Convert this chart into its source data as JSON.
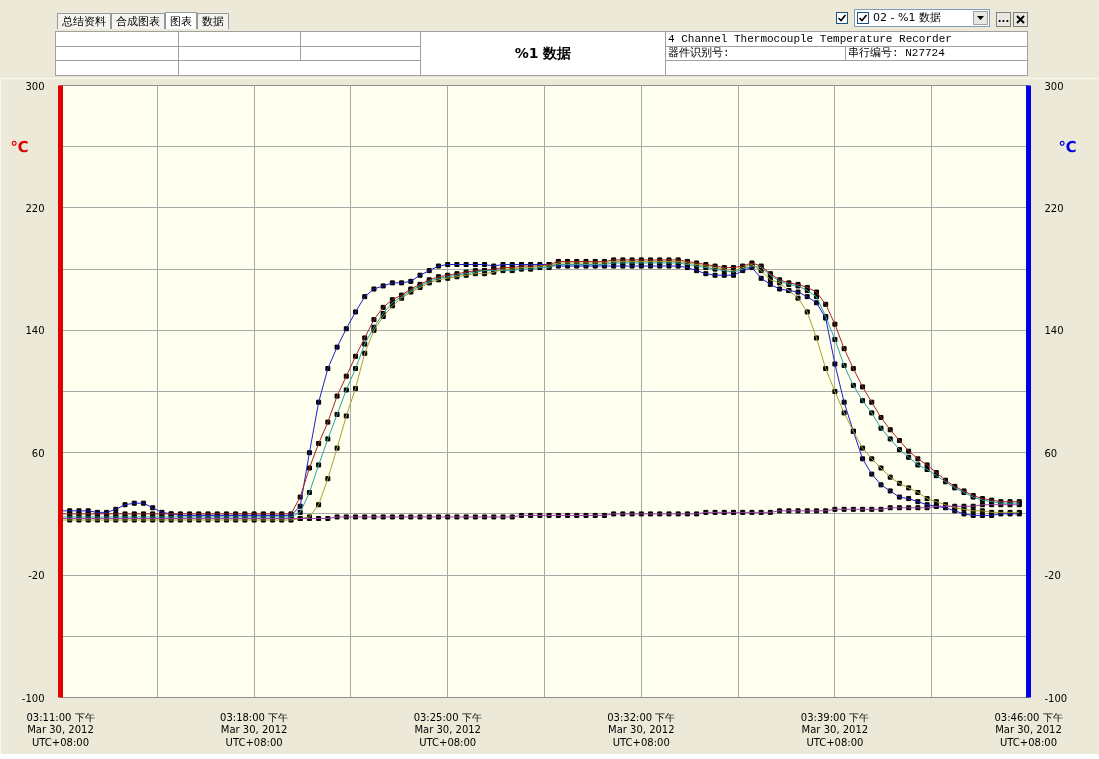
{
  "chart_data": {
    "type": "line",
    "title": "%1 数据",
    "subtitle": "4 Channel Thermocouple Temperature Recorder",
    "ylabel": "℃",
    "y2label": "℃",
    "annotations": [
      "器件识别号:",
      "串行编号: N27724",
      "总结资料",
      "合成图表",
      "图表",
      "数据",
      "02 - %1 数据",
      "..."
    ],
    "x": [
      "2012-03-30T15:11:00",
      "2012-03-30T15:11:20",
      "2012-03-30T15:11:40",
      "2012-03-30T15:12:00",
      "2012-03-30T15:12:20",
      "2012-03-30T15:12:40",
      "2012-03-30T15:13:00",
      "2012-03-30T15:13:20",
      "2012-03-30T15:13:40",
      "2012-03-30T15:14:00",
      "2012-03-30T15:14:20",
      "2012-03-30T15:14:40",
      "2012-03-30T15:15:00",
      "2012-03-30T15:15:20",
      "2012-03-30T15:15:40",
      "2012-03-30T15:16:00",
      "2012-03-30T15:16:20",
      "2012-03-30T15:16:40",
      "2012-03-30T15:17:00",
      "2012-03-30T15:17:20",
      "2012-03-30T15:17:40",
      "2012-03-30T15:18:00",
      "2012-03-30T15:18:20",
      "2012-03-30T15:18:40",
      "2012-03-30T15:19:00",
      "2012-03-30T15:19:20",
      "2012-03-30T15:19:40",
      "2012-03-30T15:20:00",
      "2012-03-30T15:20:20",
      "2012-03-30T15:20:40",
      "2012-03-30T15:21:00",
      "2012-03-30T15:21:20",
      "2012-03-30T15:21:40",
      "2012-03-30T15:22:00",
      "2012-03-30T15:22:20",
      "2012-03-30T15:22:40",
      "2012-03-30T15:23:00",
      "2012-03-30T15:23:20",
      "2012-03-30T15:23:40",
      "2012-03-30T15:24:00",
      "2012-03-30T15:24:20",
      "2012-03-30T15:24:40",
      "2012-03-30T15:25:00",
      "2012-03-30T15:25:20",
      "2012-03-30T15:25:40",
      "2012-03-30T15:26:00",
      "2012-03-30T15:26:20",
      "2012-03-30T15:26:40",
      "2012-03-30T15:27:00",
      "2012-03-30T15:27:20",
      "2012-03-30T15:27:40",
      "2012-03-30T15:28:00",
      "2012-03-30T15:28:20",
      "2012-03-30T15:28:40",
      "2012-03-30T15:29:00",
      "2012-03-30T15:29:20",
      "2012-03-30T15:29:40",
      "2012-03-30T15:30:00",
      "2012-03-30T15:30:20",
      "2012-03-30T15:30:40",
      "2012-03-30T15:31:00",
      "2012-03-30T15:31:20",
      "2012-03-30T15:31:40",
      "2012-03-30T15:32:00",
      "2012-03-30T15:32:20",
      "2012-03-30T15:32:40",
      "2012-03-30T15:33:00",
      "2012-03-30T15:33:20",
      "2012-03-30T15:33:40",
      "2012-03-30T15:34:00",
      "2012-03-30T15:34:20",
      "2012-03-30T15:34:40",
      "2012-03-30T15:35:00",
      "2012-03-30T15:35:20",
      "2012-03-30T15:35:40",
      "2012-03-30T15:36:00",
      "2012-03-30T15:36:20",
      "2012-03-30T15:36:40",
      "2012-03-30T15:37:00",
      "2012-03-30T15:37:20",
      "2012-03-30T15:37:40",
      "2012-03-30T15:38:00",
      "2012-03-30T15:38:20",
      "2012-03-30T15:38:40",
      "2012-03-30T15:39:00",
      "2012-03-30T15:39:20",
      "2012-03-30T15:39:40",
      "2012-03-30T15:40:00",
      "2012-03-30T15:40:20",
      "2012-03-30T15:40:40",
      "2012-03-30T15:41:00",
      "2012-03-30T15:41:20",
      "2012-03-30T15:41:40",
      "2012-03-30T15:42:00",
      "2012-03-30T15:42:20",
      "2012-03-30T15:42:40",
      "2012-03-30T15:43:00",
      "2012-03-30T15:43:20",
      "2012-03-30T15:43:40",
      "2012-03-30T15:44:00",
      "2012-03-30T15:44:20",
      "2012-03-30T15:44:40",
      "2012-03-30T15:45:00",
      "2012-03-30T15:45:20",
      "2012-03-30T15:45:40"
    ],
    "xlim": [
      "2012-03-30T15:11:00",
      "2012-03-30T15:46:00"
    ],
    "xticks": [
      {
        "value": "2012-03-30T15:11:00",
        "label": "03:11:00 下午\nMar 30, 2012\nUTC+08:00"
      },
      {
        "value": "2012-03-30T15:14:30",
        "label": null
      },
      {
        "value": "2012-03-30T15:18:00",
        "label": "03:18:00 下午\nMar 30, 2012\nUTC+08:00"
      },
      {
        "value": "2012-03-30T15:21:30",
        "label": null
      },
      {
        "value": "2012-03-30T15:25:00",
        "label": "03:25:00 下午\nMar 30, 2012\nUTC+08:00"
      },
      {
        "value": "2012-03-30T15:28:30",
        "label": null
      },
      {
        "value": "2012-03-30T15:32:00",
        "label": "03:32:00 下午\nMar 30, 2012\nUTC+08:00"
      },
      {
        "value": "2012-03-30T15:35:30",
        "label": null
      },
      {
        "value": "2012-03-30T15:39:00",
        "label": "03:39:00 下午\nMar 30, 2012\nUTC+08:00"
      },
      {
        "value": "2012-03-30T15:42:30",
        "label": null
      },
      {
        "value": "2012-03-30T15:46:00",
        "label": "03:46:00 下午\nMar 30, 2012\nUTC+08:00"
      }
    ],
    "ylim": [
      -100,
      300
    ],
    "yticks": [
      -100,
      {
        "value": -60,
        "label": null
      },
      -20,
      {
        "value": 20,
        "label": null
      },
      60,
      {
        "value": 100,
        "label": null
      },
      140,
      {
        "value": 180,
        "label": null
      },
      220,
      {
        "value": 260,
        "label": null
      },
      300
    ],
    "y2lim": [
      -100,
      300
    ],
    "y2ticks": [
      -100,
      -20,
      60,
      140,
      220,
      300
    ],
    "grid": true,
    "marker": "square",
    "line_style": "solid",
    "series": [
      {
        "color": "#2020c8",
        "values": [
          22,
          22,
          22,
          22,
          21,
          21,
          23,
          26,
          27,
          27,
          24,
          21,
          20,
          19,
          19,
          19,
          19,
          19,
          19,
          19,
          19,
          19,
          19,
          19,
          19,
          19,
          25,
          60,
          93,
          115,
          129,
          141,
          152,
          162,
          167,
          169,
          171,
          171,
          172,
          176,
          179,
          182,
          183,
          183,
          183,
          183,
          183,
          182,
          183,
          183,
          183,
          183,
          183,
          183,
          182,
          182,
          182,
          182,
          182,
          182,
          182,
          182,
          182,
          182,
          182,
          182,
          182,
          182,
          181,
          179,
          177,
          176,
          176,
          176,
          179,
          181,
          174,
          170,
          167,
          166,
          165,
          162,
          158,
          148,
          118,
          93,
          74,
          56,
          46,
          39,
          35,
          31,
          30,
          28,
          26,
          25,
          24,
          22,
          20,
          19,
          19,
          19,
          20,
          20,
          20
        ]
      },
      {
        "color": "#a02828",
        "values": [
          20,
          20,
          20,
          20,
          20,
          20,
          20,
          20,
          20,
          20,
          20,
          20,
          20,
          20,
          20,
          20,
          20,
          20,
          20,
          20,
          20,
          20,
          20,
          20,
          20,
          20,
          31,
          50,
          66,
          80,
          97,
          110,
          123,
          135,
          147,
          155,
          160,
          163,
          167,
          170,
          173,
          175,
          176,
          177,
          178,
          179,
          179,
          180,
          181,
          181,
          182,
          182,
          182,
          183,
          185,
          185,
          185,
          185,
          185,
          185,
          186,
          186,
          186,
          186,
          186,
          186,
          186,
          186,
          185,
          184,
          183,
          182,
          181,
          181,
          182,
          184,
          182,
          177,
          173,
          171,
          170,
          168,
          165,
          157,
          144,
          128,
          115,
          103,
          93,
          83,
          75,
          68,
          61,
          56,
          52,
          47,
          42,
          38,
          35,
          32,
          30,
          29,
          28,
          28,
          28
        ]
      },
      {
        "color": "#30a0a0",
        "values": [
          18,
          18,
          18,
          18,
          18,
          18,
          18,
          18,
          18,
          18,
          18,
          18,
          18,
          18,
          18,
          18,
          18,
          18,
          18,
          18,
          18,
          18,
          18,
          18,
          18,
          18,
          21,
          34,
          52,
          69,
          85,
          101,
          115,
          131,
          142,
          151,
          158,
          162,
          166,
          169,
          172,
          174,
          175,
          176,
          177,
          178,
          179,
          179,
          179,
          179,
          180,
          180,
          181,
          181,
          183,
          183,
          183,
          183,
          183,
          183,
          184,
          184,
          184,
          184,
          184,
          184,
          184,
          184,
          183,
          182,
          181,
          180,
          179,
          178,
          180,
          182,
          181,
          176,
          172,
          170,
          169,
          166,
          162,
          149,
          134,
          117,
          104,
          94,
          86,
          76,
          69,
          62,
          57,
          52,
          49,
          45,
          41,
          37,
          34,
          31,
          29,
          28,
          27,
          27,
          27
        ]
      },
      {
        "color": "#a8a030",
        "values": [
          16,
          16,
          16,
          16,
          16,
          16,
          16,
          16,
          16,
          16,
          16,
          16,
          16,
          16,
          16,
          16,
          16,
          16,
          16,
          16,
          16,
          16,
          16,
          16,
          16,
          16,
          17,
          18,
          26,
          43,
          63,
          84,
          102,
          125,
          140,
          149,
          156,
          161,
          165,
          168,
          171,
          173,
          174,
          175,
          176,
          177,
          177,
          178,
          180,
          180,
          181,
          181,
          182,
          182,
          184,
          184,
          184,
          184,
          184,
          184,
          185,
          185,
          185,
          185,
          185,
          185,
          185,
          185,
          184,
          183,
          182,
          181,
          180,
          179,
          181,
          183,
          179,
          173,
          171,
          166,
          161,
          152,
          135,
          115,
          100,
          86,
          74,
          63,
          56,
          50,
          44,
          40,
          37,
          34,
          30,
          28,
          26,
          24,
          23,
          22,
          22,
          21,
          21,
          21,
          21
        ]
      },
      {
        "color": "#a040a8",
        "values": [
          17,
          17,
          17,
          17,
          17,
          17,
          17,
          17,
          17,
          17,
          17,
          17,
          17,
          17,
          17,
          17,
          17,
          17,
          17,
          17,
          17,
          17,
          17,
          17,
          17,
          17,
          17,
          17,
          17,
          17,
          18,
          18,
          18,
          18,
          18,
          18,
          18,
          18,
          18,
          18,
          18,
          18,
          18,
          18,
          18,
          18,
          18,
          18,
          18,
          18,
          19,
          19,
          19,
          19,
          19,
          19,
          19,
          19,
          19,
          19,
          20,
          20,
          20,
          20,
          20,
          20,
          20,
          20,
          20,
          20,
          21,
          21,
          21,
          21,
          21,
          21,
          21,
          21,
          22,
          22,
          22,
          22,
          22,
          22,
          23,
          23,
          23,
          23,
          23,
          23,
          24,
          24,
          24,
          24,
          24,
          25,
          25,
          25,
          25,
          25,
          26,
          26,
          26,
          26,
          26
        ]
      }
    ]
  }
}
